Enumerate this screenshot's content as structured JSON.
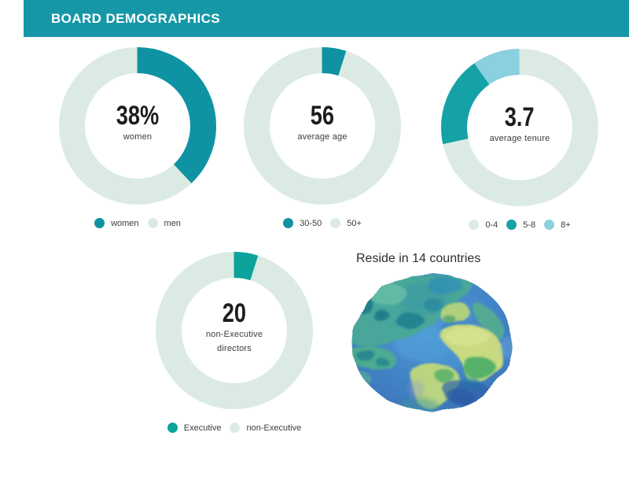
{
  "header": {
    "title": "BOARD DEMOGRAPHICS",
    "color": "#1697A7"
  },
  "colors": {
    "teal": "#0F93A3",
    "teal_bright": "#14A2A6",
    "teal_green": "#0BA39B",
    "pale": "#DBEBE4",
    "light_blue": "#8AD0DE"
  },
  "charts": [
    {
      "value": "38%",
      "label": "women",
      "label2": "",
      "legend": [
        {
          "label": "women",
          "color": "#0F93A3"
        },
        {
          "label": "men",
          "color": "#DBEBE4"
        }
      ],
      "ring_base": "#DBEBE4",
      "arcs": [
        {
          "color": "#0F93A3",
          "start": 0,
          "deg": 136.8
        }
      ]
    },
    {
      "value": "56",
      "label": "average age",
      "label2": "",
      "legend": [
        {
          "label": "30-50",
          "color": "#0F93A3"
        },
        {
          "label": "50+",
          "color": "#DBEBE4"
        }
      ],
      "ring_base": "#DBEBE4",
      "arcs": [
        {
          "color": "#0F93A3",
          "start": 0,
          "deg": 18
        }
      ]
    },
    {
      "value": "3.7",
      "label": "average tenure",
      "label2": "",
      "legend": [
        {
          "label": "0-4",
          "color": "#DBEBE4"
        },
        {
          "label": "5-8",
          "color": "#14A2A6"
        },
        {
          "label": "8+",
          "color": "#8AD0DE"
        }
      ],
      "ring_base": "#DBEBE4",
      "arcs": [
        {
          "color": "#14A2A6",
          "start": 258,
          "deg": 67
        },
        {
          "color": "#8AD0DE",
          "start": 325,
          "deg": 35
        }
      ]
    },
    {
      "value": "20",
      "label": "non-Executive",
      "label2": "directors",
      "legend": [
        {
          "label": "Executive",
          "color": "#0BA39B"
        },
        {
          "label": "non-Executive",
          "color": "#DBEBE4"
        }
      ],
      "ring_base": "#DBEBE4",
      "arcs": [
        {
          "color": "#0BA39B",
          "start": 0,
          "deg": 18
        }
      ]
    }
  ],
  "globe": {
    "title": "Reside in 14 countries"
  },
  "chart_data": [
    {
      "type": "pie",
      "title": "women",
      "categories": [
        "women",
        "men"
      ],
      "values": [
        38,
        62
      ],
      "center_value": "38%",
      "center_label": "women"
    },
    {
      "type": "pie",
      "title": "average age",
      "categories": [
        "30-50",
        "50+"
      ],
      "values": [
        5,
        95
      ],
      "center_value": "56",
      "center_label": "average age"
    },
    {
      "type": "pie",
      "title": "average tenure",
      "categories": [
        "0-4",
        "5-8",
        "8+"
      ],
      "values": [
        71.7,
        18.6,
        9.7
      ],
      "center_value": "3.7",
      "center_label": "average tenure"
    },
    {
      "type": "pie",
      "title": "directors",
      "categories": [
        "Executive",
        "non-Executive"
      ],
      "values": [
        5,
        95
      ],
      "center_value": "20",
      "center_label": "non-Executive directors"
    }
  ]
}
